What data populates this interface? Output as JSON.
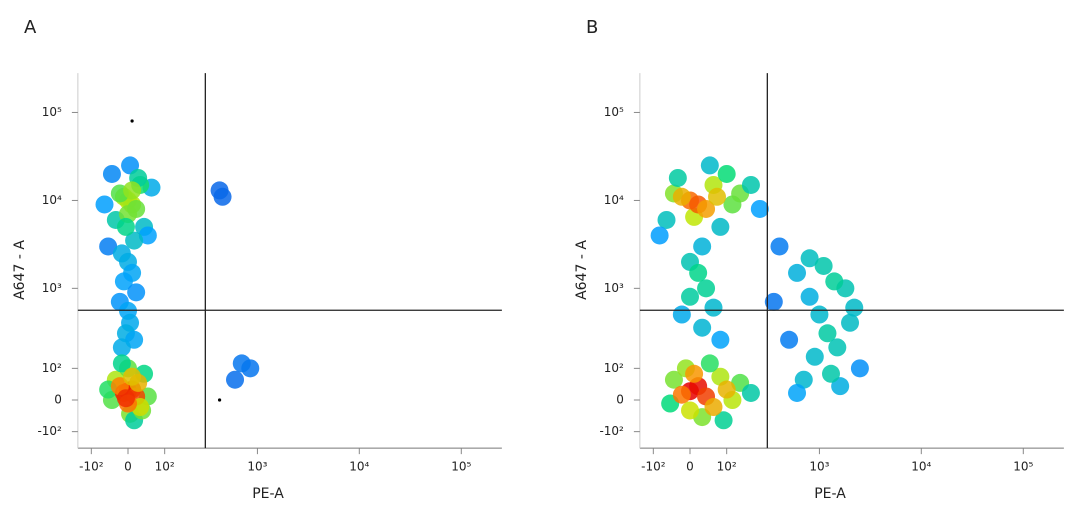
{
  "chart_data": [
    {
      "type": "scatter",
      "title": "A",
      "xlabel": "PE-A",
      "ylabel": "A647 - A",
      "xlim": [
        -150,
        250000
      ],
      "ylim": [
        -175,
        280000
      ],
      "xticks": [
        {
          "value": -100,
          "label": "-10²"
        },
        0,
        {
          "value": 100,
          "label": "10²"
        },
        {
          "value": 1000,
          "label": "10³"
        },
        {
          "value": 10000,
          "label": "10⁴"
        },
        {
          "value": 100000,
          "label": "10⁵"
        }
      ],
      "yticks": [
        {
          "value": -100,
          "label": "-10²"
        },
        0,
        {
          "value": 100,
          "label": "10²"
        },
        {
          "value": 1000,
          "label": "10³"
        },
        {
          "value": 10000,
          "label": "10⁴"
        },
        {
          "value": 100000,
          "label": "10⁵"
        }
      ],
      "quadrant": {
        "x": 300,
        "y": 560
      },
      "x": [
        0,
        10,
        -10,
        20,
        -20,
        30,
        -30,
        40,
        -40,
        5,
        50,
        -50,
        60,
        -60,
        15,
        -15,
        25,
        0,
        10,
        -5,
        0,
        10,
        -10,
        20,
        -20,
        0,
        5,
        -5,
        15,
        -15,
        0,
        10,
        -10,
        20,
        -20,
        30,
        -30,
        5,
        40,
        -40,
        0,
        15,
        -15,
        25,
        50,
        -50,
        0,
        10,
        -5,
        35,
        10,
        420,
        450,
        420,
        600,
        850,
        700
      ],
      "y": [
        10000,
        9000,
        11000,
        8000,
        12000,
        15000,
        6000,
        5000,
        20000,
        25000,
        4000,
        3000,
        14000,
        9000,
        3500,
        2500,
        18000,
        7000,
        13000,
        5000,
        2000,
        1500,
        1200,
        900,
        700,
        550,
        400,
        300,
        250,
        200,
        25,
        30,
        20,
        10,
        40,
        -20,
        60,
        -40,
        80,
        0,
        100,
        -60,
        120,
        50,
        10,
        30,
        -10,
        70,
        5,
        -30,
        80000,
        13000,
        11000,
        0,
        60,
        100,
        120
      ]
    },
    {
      "type": "scatter",
      "title": "B",
      "xlabel": "PE-A",
      "ylabel": "A647 - A",
      "xlim": [
        -150,
        250000
      ],
      "ylim": [
        -175,
        280000
      ],
      "xticks": [
        {
          "value": -100,
          "label": "-10²"
        },
        0,
        {
          "value": 100,
          "label": "10²"
        },
        {
          "value": 1000,
          "label": "10³"
        },
        {
          "value": 10000,
          "label": "10⁴"
        },
        {
          "value": 100000,
          "label": "10⁵"
        }
      ],
      "yticks": [
        {
          "value": -100,
          "label": "-10²"
        },
        0,
        {
          "value": 100,
          "label": "10²"
        },
        {
          "value": 1000,
          "label": "10³"
        },
        {
          "value": 10000,
          "label": "10⁴"
        },
        {
          "value": 100000,
          "label": "10⁵"
        }
      ],
      "quadrant": {
        "x": 300,
        "y": 560
      },
      "x": [
        0,
        20,
        -20,
        40,
        -40,
        60,
        -60,
        80,
        100,
        120,
        150,
        200,
        250,
        -80,
        30,
        0,
        50,
        -30,
        10,
        70,
        20,
        40,
        0,
        60,
        -20,
        30,
        80,
        0,
        20,
        -20,
        40,
        -40,
        60,
        80,
        100,
        120,
        -10,
        30,
        150,
        0,
        50,
        -50,
        90,
        200,
        10,
        400,
        600,
        800,
        1000,
        1200,
        1500,
        2000,
        900,
        700,
        1300,
        500,
        1800,
        1100,
        2500,
        600,
        1600,
        350,
        2200,
        800,
        1400
      ],
      "y": [
        10000,
        9000,
        11000,
        8000,
        12000,
        15000,
        6000,
        5000,
        20000,
        9000,
        12000,
        15000,
        8000,
        4000,
        3000,
        2000,
        25000,
        18000,
        6500,
        11000,
        1500,
        1000,
        800,
        600,
        500,
        350,
        250,
        25,
        40,
        15,
        10,
        60,
        -20,
        70,
        30,
        0,
        100,
        -50,
        50,
        -30,
        120,
        -10,
        -60,
        20,
        80,
        3000,
        1500,
        800,
        500,
        300,
        200,
        400,
        150,
        60,
        80,
        250,
        1000,
        1800,
        100,
        20,
        40,
        700,
        600,
        2200,
        1200
      ]
    }
  ]
}
